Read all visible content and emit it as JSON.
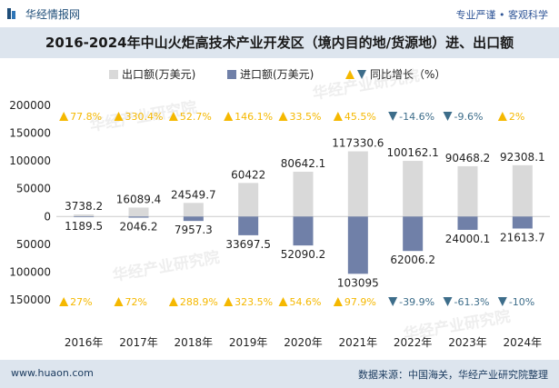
{
  "header": {
    "brand": "华经情报网",
    "tagline": "专业严谨 • 客观科学"
  },
  "title": "2016-2024年中山火炬高技术产业开发区（境内目的地/货源地）进、出口额",
  "footer": {
    "url": "www.huaon.com",
    "source": "数据来源：中国海关，华经产业研究院整理"
  },
  "watermark": "华经产业研究院",
  "colors": {
    "export": "#d9d9d9",
    "import": "#7080a8",
    "up": "#f5b800",
    "down": "#3d6d8a",
    "title_bg": "#dde5ee"
  },
  "chart_data": {
    "type": "bar",
    "categories": [
      "2016年",
      "2017年",
      "2018年",
      "2019年",
      "2020年",
      "2021年",
      "2022年",
      "2023年",
      "2024年"
    ],
    "series": [
      {
        "name": "出口额(万美元)",
        "values": [
          3738.2,
          16089.4,
          24549.7,
          60422,
          80642.1,
          117330.6,
          100162.1,
          90468.2,
          92308.1
        ],
        "labels": [
          "3738.2",
          "16089.4",
          "24549.7",
          "60422",
          "80642.1",
          "117330.6",
          "100162.1",
          "90468.2",
          "92308.1"
        ]
      },
      {
        "name": "进口额(万美元)",
        "values": [
          -1189.5,
          -2046.2,
          -7957.3,
          -33697.5,
          -52090.2,
          -103095,
          -62006.2,
          -24000.1,
          -21613.7
        ],
        "labels": [
          "1189.5",
          "2046.2",
          "7957.3",
          "33697.5",
          "52090.2",
          "103095",
          "62006.2",
          "24000.1",
          "21613.7"
        ]
      }
    ],
    "growth_legend": "同比增长（%）",
    "export_growth": [
      "77.8%",
      "330.4%",
      "52.7%",
      "146.1%",
      "33.5%",
      "45.5%",
      "-14.6%",
      "-9.6%",
      "2%"
    ],
    "export_growth_dir": [
      "up",
      "up",
      "up",
      "up",
      "up",
      "up",
      "down",
      "down",
      "up"
    ],
    "import_growth": [
      "27%",
      "72%",
      "288.9%",
      "323.5%",
      "54.6%",
      "97.9%",
      "-39.9%",
      "-61.3%",
      "-10%"
    ],
    "import_growth_dir": [
      "up",
      "up",
      "up",
      "up",
      "up",
      "up",
      "down",
      "down",
      "down"
    ],
    "ylim": [
      -150000,
      200000
    ],
    "yticks": [
      200000,
      150000,
      100000,
      50000,
      0,
      -50000,
      -100000,
      -150000
    ],
    "ytick_labels": [
      "200000",
      "150000",
      "100000",
      "50000",
      "0",
      "50000",
      "100000",
      "150000"
    ]
  }
}
